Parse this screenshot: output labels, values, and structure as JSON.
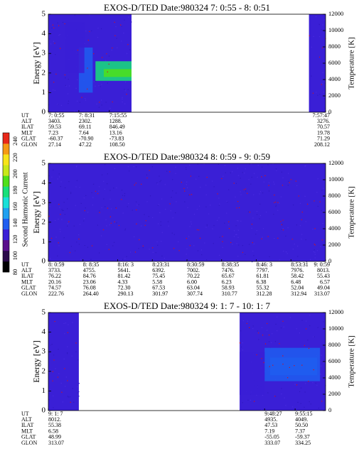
{
  "chart_data": {
    "type": "heatmap",
    "colorbar": {
      "label": "Second Harmonic Current",
      "ticks": [
        80,
        100,
        120,
        140,
        160,
        180,
        200,
        220,
        240
      ],
      "range": [
        80,
        250
      ],
      "colors": [
        "#000000",
        "#2a0a4a",
        "#5a0f8c",
        "#3a1fd6",
        "#1f5ef0",
        "#1fa0f0",
        "#19e0d8",
        "#18e07a",
        "#4fe01a",
        "#c8e81a",
        "#f7e41a",
        "#f59a14",
        "#e8281a"
      ]
    },
    "panels": [
      {
        "title": "EXOS-D/TED   Date:980324  7: 0:55 - 8: 0:51",
        "ylabel": "Energy [eV]",
        "y2label": "Temperature [K]",
        "ylim": [
          0,
          5
        ],
        "yticks": [
          0,
          1,
          2,
          3,
          4,
          5
        ],
        "y2lim": [
          0,
          12000
        ],
        "y2ticks": [
          0,
          2000,
          4000,
          6000,
          8000,
          10000,
          12000
        ],
        "data_segments": [
          [
            0.0,
            0.3
          ],
          [
            0.94,
            1.0
          ]
        ],
        "intense_regions": [
          {
            "x": [
              0.17,
              0.3
            ],
            "y": [
              1.6,
              2.6
            ],
            "level": 175
          },
          {
            "x": [
              0.2,
              0.3
            ],
            "y": [
              1.8,
              2.2
            ],
            "level": 185
          },
          {
            "x": [
              0.11,
              0.16
            ],
            "y": [
              1.0,
              3.3
            ],
            "level": 145
          },
          {
            "x": [
              0.06,
              0.13
            ],
            "y": [
              2.0,
              4.6
            ],
            "level": 122
          }
        ],
        "orbit": {
          "rows": [
            {
              "name": "UT",
              "values": [
                "7: 0:55",
                "7: 8:31",
                "7:15:55",
                "7:57:47"
              ]
            },
            {
              "name": "ALT",
              "values": [
                "3403.",
                "2302.",
                "1288.",
                "3276."
              ]
            },
            {
              "name": "ILAT",
              "values": [
                "59.53",
                "69.11",
                "846.49",
                "70.57"
              ]
            },
            {
              "name": "MLT",
              "values": [
                "7.23",
                "7.64",
                "13.16",
                "19.78"
              ]
            },
            {
              "name": "GLAT",
              "values": [
                "-60.37",
                "-70.90",
                "-73.83",
                "71.29"
              ]
            },
            {
              "name": "GLON",
              "values": [
                "27.14",
                "47.22",
                "108.50",
                "208.12"
              ]
            }
          ],
          "positions": [
            0.0,
            0.11,
            0.22,
            1.0
          ]
        }
      },
      {
        "title": "EXOS-D/TED   Date:980324  8: 0:59 - 9: 0:59",
        "ylabel": "Energy [eV]",
        "y2label": "Temperature [K]",
        "ylim": [
          0,
          5
        ],
        "yticks": [
          0,
          1,
          2,
          3,
          4,
          5
        ],
        "y2lim": [
          0,
          12000
        ],
        "y2ticks": [
          0,
          2000,
          4000,
          6000,
          8000,
          10000,
          12000
        ],
        "data_segments": [
          [
            0.0,
            1.0
          ]
        ],
        "intense_regions": [],
        "orbit": {
          "rows": [
            {
              "name": "UT",
              "values": [
                "8: 0:59",
                "8: 8:35",
                "8:16: 3",
                "8:23:31",
                "8:30:59",
                "8:38:35",
                "8:46: 3",
                "8:53:31",
                "9: 0:59"
              ]
            },
            {
              "name": "ALT",
              "values": [
                "3733.",
                "4755.",
                "5641.",
                "6392.",
                "7002.",
                "7476.",
                "7797.",
                "7976.",
                "8013."
              ]
            },
            {
              "name": "ILAT",
              "values": [
                "76.22",
                "84.76",
                "81.42",
                "75.45",
                "70.22",
                "65.67",
                "61.81",
                "58.42",
                "55.43"
              ]
            },
            {
              "name": "MLT",
              "values": [
                "20.16",
                "23.06",
                "4.33",
                "5.58",
                "6.00",
                "6.23",
                "6.38",
                "6.48",
                "6.57"
              ]
            },
            {
              "name": "GLAT",
              "values": [
                "74.57",
                "76.08",
                "72.30",
                "67.53",
                "63.04",
                "58.93",
                "55.32",
                "52.04",
                "49.04"
              ]
            },
            {
              "name": "GLON",
              "values": [
                "222.76",
                "264.40",
                "290.13",
                "301.97",
                "307.74",
                "310.77",
                "312.28",
                "312.94",
                "313.07"
              ]
            }
          ],
          "positions": [
            0.0,
            0.125,
            0.25,
            0.375,
            0.5,
            0.625,
            0.75,
            0.875,
            1.0
          ]
        }
      },
      {
        "title": "EXOS-D/TED   Date:980324  9: 1: 7 - 10: 1: 7",
        "ylabel": "Energy [eV]",
        "y2label": "Temperature [K]",
        "ylim": [
          0,
          5
        ],
        "yticks": [
          0,
          1,
          2,
          3,
          4,
          5
        ],
        "y2lim": [
          0,
          12000
        ],
        "y2ticks": [
          0,
          2000,
          4000,
          6000,
          8000,
          10000,
          12000
        ],
        "data_segments": [
          [
            0.0,
            0.11
          ],
          [
            0.69,
            1.0
          ]
        ],
        "intense_regions": [
          {
            "x": [
              0.78,
              0.98
            ],
            "y": [
              1.5,
              3.2
            ],
            "level": 138
          },
          {
            "x": [
              0.8,
              0.97
            ],
            "y": [
              1.8,
              2.7
            ],
            "level": 143
          },
          {
            "x": [
              0.69,
              0.78
            ],
            "y": [
              0.8,
              3.0
            ],
            "level": 122
          }
        ],
        "orbit": {
          "rows": [
            {
              "name": "UT",
              "values": [
                "9: 1: 7",
                "9:48:27",
                "9:55:15"
              ]
            },
            {
              "name": "ALT",
              "values": [
                "8012.",
                "4935.",
                "4049."
              ]
            },
            {
              "name": "ILAT",
              "values": [
                "55.38",
                "47.53",
                "50.50"
              ]
            },
            {
              "name": "MLT",
              "values": [
                "6.58",
                "7.19",
                "7.37"
              ]
            },
            {
              "name": "GLAT",
              "values": [
                "48.99",
                "-55.05",
                "-59.37"
              ]
            },
            {
              "name": "GLON",
              "values": [
                "313.07",
                "333.07",
                "334.25"
              ]
            }
          ],
          "positions": [
            0.0,
            0.78,
            0.89
          ]
        }
      }
    ]
  }
}
